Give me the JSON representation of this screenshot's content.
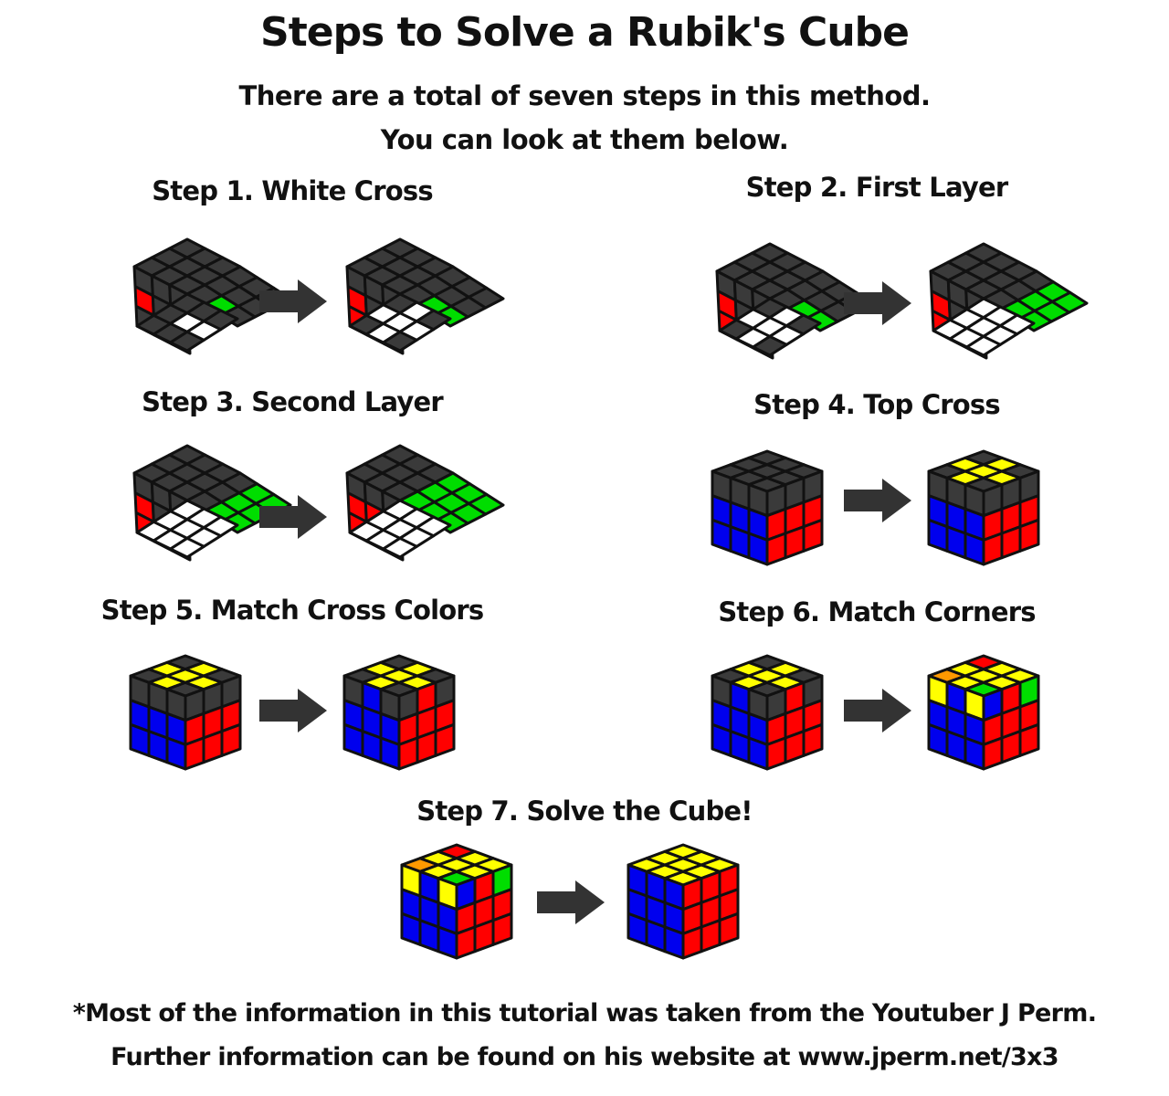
{
  "title": "Steps to Solve a Rubik's Cube",
  "subtitle_line1": "There are a total of seven steps in this method.",
  "subtitle_line2": "You can look at them below.",
  "colors": {
    "K": "#3a3a3a",
    "W": "#ffffff",
    "R": "#ff0000",
    "G": "#00dd00",
    "B": "#0000ee",
    "Y": "#ffff00",
    "O": "#ff9900"
  },
  "steps": [
    {
      "label": "Step 1. White Cross",
      "before": {
        "top": "KKKKKKKKK",
        "left": "KKKRKKKKK",
        "right": "KKKGKKKKK",
        "bottom": "KKKKWKKWK"
      },
      "after": {
        "top": "KKKKKKKKK",
        "left": "KKKRKKRKK",
        "right": "KKKGKKGKK",
        "bottom": "KWKWWWKWK"
      }
    },
    {
      "label": "Step 2. First Layer",
      "before": {
        "top": "KKKKKKKKK",
        "left": "KKKRKKRKK",
        "right": "KKKGKKGKK",
        "bottom": "KWKWWWKWK"
      },
      "after": {
        "top": "KKKKKKKKK",
        "left": "KKKRKKRRR",
        "right": "KKKGGGGGG",
        "bottom": "WWWWWWWWW"
      }
    },
    {
      "label": "Step 3. Second Layer",
      "before": {
        "top": "KKKKKKKKK",
        "left": "KKKRKKRRR",
        "right": "KKKGGGGGG",
        "bottom": "WWWWWWWWW"
      },
      "after": {
        "top": "KKKKKKKKK",
        "left": "KKKRRRRRR",
        "right": "GGGGGGGGG",
        "bottom": "WWWWWWWWW"
      }
    },
    {
      "label": "Step 4. Top Cross",
      "before": {
        "top": "KKKKKKKKK",
        "left": "KKKBBBBBB",
        "right": "KKKRRRRRR"
      },
      "after": {
        "top": "KYKYYYKYK",
        "left": "KKKBBBBBB",
        "right": "KKKRRRRRR"
      }
    },
    {
      "label": "Step 5. Match Cross Colors",
      "before": {
        "top": "KYKYYYKYK",
        "left": "KKKBBBBBB",
        "right": "KKKRRRRRR"
      },
      "after": {
        "top": "KYKYYYKYK",
        "left": "KBKBBBBBB",
        "right": "KRKRRRRRR"
      }
    },
    {
      "label": "Step 6. Match Corners",
      "before": {
        "top": "KYKYYYKYK",
        "left": "KBKBBBBBB",
        "right": "KRKRRRRRR"
      },
      "after": {
        "top": "OYRYYYGYY",
        "left": "YBYBBBBBB",
        "right": "BRGRRRRRR"
      }
    },
    {
      "label": "Step 7. Solve the Cube!",
      "before": {
        "top": "OYRYYYGYY",
        "left": "YBYBBBBBB",
        "right": "BRGRRRRRR"
      },
      "after": {
        "top": "YYYYYYYYY",
        "left": "BBBBBBBBB",
        "right": "RRRRRRRRR"
      }
    }
  ],
  "footer_line1": "*Most of the information in this tutorial was taken from the Youtuber J Perm.",
  "footer_line2": "Further information can be found on his website at www.jperm.net/3x3"
}
